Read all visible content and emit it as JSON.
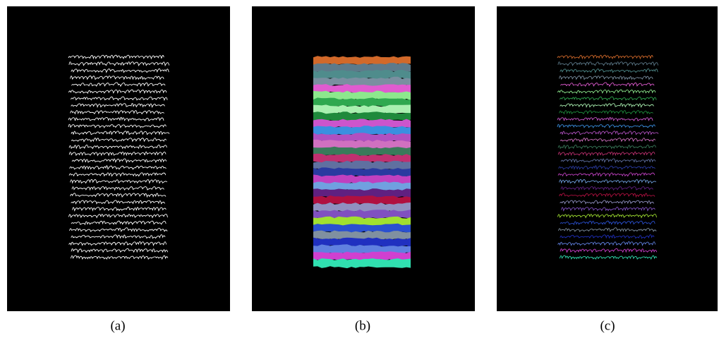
{
  "panels": [
    {
      "caption": "(a)"
    },
    {
      "caption": "(b)"
    },
    {
      "caption": "(c)"
    }
  ]
}
